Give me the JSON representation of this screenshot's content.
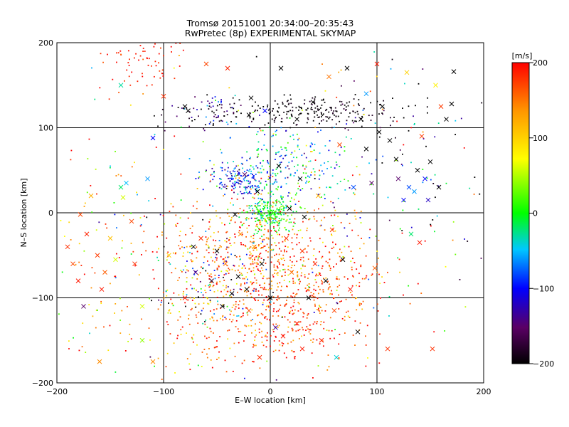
{
  "chart_data": {
    "type": "scatter",
    "title_lines": [
      "Tromsø 20151001 20:34:00–20:35:43",
      "RwPretec (8p) EXPERIMENTAL SKYMAP"
    ],
    "xlabel": "E–W location [km]",
    "ylabel": "N–S location [km]",
    "xlim": [
      -200,
      200
    ],
    "ylim": [
      -200,
      200
    ],
    "xticks": [
      -200,
      -100,
      0,
      100,
      200
    ],
    "yticks": [
      -200,
      -100,
      0,
      100,
      200
    ],
    "x_tick_labels": [
      "−200",
      "−100",
      "0",
      "100",
      "200"
    ],
    "y_tick_labels": [
      "−200",
      "−100",
      "0",
      "100",
      "200"
    ],
    "grid": true,
    "colorbar": {
      "label": "[m/s]",
      "range": [
        -200,
        200
      ],
      "ticks": [
        200,
        100,
        0,
        -100,
        -200
      ],
      "tick_labels": [
        "200",
        "100",
        "0",
        "−100",
        "−200"
      ],
      "colormap": "rainbow",
      "colors": [
        "#000000",
        "#5a0064",
        "#0000ff",
        "#00c8ff",
        "#00ff00",
        "#ffff00",
        "#ff9600",
        "#ff0000"
      ]
    },
    "points": [
      {
        "x": -190,
        "y": -40,
        "v": 180,
        "m": "x"
      },
      {
        "x": -185,
        "y": -60,
        "v": 170,
        "m": "x"
      },
      {
        "x": -180,
        "y": -80,
        "v": 190,
        "m": "x"
      },
      {
        "x": -175,
        "y": -110,
        "v": -150,
        "m": "x"
      },
      {
        "x": -178,
        "y": -2,
        "v": 170,
        "m": "x"
      },
      {
        "x": -172,
        "y": -25,
        "v": 185,
        "m": "x"
      },
      {
        "x": -168,
        "y": 20,
        "v": 120,
        "m": "x"
      },
      {
        "x": -162,
        "y": -50,
        "v": 175,
        "m": "x"
      },
      {
        "x": -158,
        "y": -90,
        "v": 190,
        "m": "x"
      },
      {
        "x": -155,
        "y": -70,
        "v": 160,
        "m": "x"
      },
      {
        "x": -150,
        "y": -30,
        "v": 110,
        "m": "x"
      },
      {
        "x": -145,
        "y": -55,
        "v": 60,
        "m": "x"
      },
      {
        "x": -140,
        "y": 30,
        "v": -20,
        "m": "x"
      },
      {
        "x": -135,
        "y": 35,
        "v": -50,
        "m": "x"
      },
      {
        "x": -130,
        "y": -10,
        "v": 170,
        "m": "x"
      },
      {
        "x": -127,
        "y": -60,
        "v": 180,
        "m": "x"
      },
      {
        "x": -120,
        "y": -110,
        "v": 60,
        "m": "x"
      },
      {
        "x": -115,
        "y": 40,
        "v": -60,
        "m": "x"
      },
      {
        "x": -110,
        "y": -175,
        "v": 140,
        "m": "x"
      },
      {
        "x": -160,
        "y": -175,
        "v": 140,
        "m": "x"
      },
      {
        "x": -100,
        "y": 137,
        "v": 180,
        "m": "x"
      },
      {
        "x": -95,
        "y": -50,
        "v": 100,
        "m": "x"
      },
      {
        "x": -80,
        "y": -100,
        "v": 190,
        "m": "x"
      },
      {
        "x": -80,
        "y": 125,
        "v": -200,
        "m": "x"
      },
      {
        "x": -77,
        "y": 120,
        "v": -200,
        "m": "x"
      },
      {
        "x": -72,
        "y": -40,
        "v": -200,
        "m": "x"
      },
      {
        "x": -70,
        "y": -70,
        "v": -140,
        "m": "x"
      },
      {
        "x": -65,
        "y": -30,
        "v": 180,
        "m": "x"
      },
      {
        "x": -60,
        "y": 175,
        "v": 170,
        "m": "x"
      },
      {
        "x": -55,
        "y": -80,
        "v": -180,
        "m": "x"
      },
      {
        "x": -50,
        "y": -45,
        "v": -200,
        "m": "x"
      },
      {
        "x": -45,
        "y": -110,
        "v": -200,
        "m": "x"
      },
      {
        "x": -42,
        "y": -60,
        "v": 150,
        "m": "x"
      },
      {
        "x": -40,
        "y": 170,
        "v": 185,
        "m": "x"
      },
      {
        "x": -36,
        "y": -95,
        "v": -200,
        "m": "x"
      },
      {
        "x": -33,
        "y": -2,
        "v": -200,
        "m": "x"
      },
      {
        "x": -30,
        "y": -75,
        "v": -200,
        "m": "x"
      },
      {
        "x": -28,
        "y": -25,
        "v": 140,
        "m": "x"
      },
      {
        "x": -24,
        "y": 45,
        "v": -150,
        "m": "x"
      },
      {
        "x": -22,
        "y": -90,
        "v": -200,
        "m": "x"
      },
      {
        "x": -20,
        "y": -115,
        "v": 170,
        "m": "x"
      },
      {
        "x": -18,
        "y": 135,
        "v": -200,
        "m": "x"
      },
      {
        "x": -15,
        "y": -40,
        "v": 130,
        "m": "x"
      },
      {
        "x": -12,
        "y": 25,
        "v": -200,
        "m": "x"
      },
      {
        "x": -8,
        "y": -60,
        "v": -200,
        "m": "x"
      },
      {
        "x": -5,
        "y": 120,
        "v": -100,
        "m": "x"
      },
      {
        "x": 0,
        "y": -100,
        "v": -200,
        "m": "x"
      },
      {
        "x": 3,
        "y": 0,
        "v": 10,
        "m": "x"
      },
      {
        "x": 5,
        "y": -135,
        "v": -130,
        "m": "x"
      },
      {
        "x": 8,
        "y": 55,
        "v": -200,
        "m": "x"
      },
      {
        "x": 12,
        "y": -145,
        "v": 190,
        "m": "x"
      },
      {
        "x": 15,
        "y": -30,
        "v": 180,
        "m": "x"
      },
      {
        "x": 18,
        "y": 5,
        "v": -200,
        "m": "x"
      },
      {
        "x": 20,
        "y": -70,
        "v": 150,
        "m": "x"
      },
      {
        "x": 25,
        "y": -130,
        "v": 190,
        "m": "x"
      },
      {
        "x": 28,
        "y": 40,
        "v": -200,
        "m": "x"
      },
      {
        "x": 30,
        "y": -45,
        "v": 180,
        "m": "x"
      },
      {
        "x": 32,
        "y": -5,
        "v": -200,
        "m": "x"
      },
      {
        "x": 36,
        "y": -100,
        "v": -200,
        "m": "x"
      },
      {
        "x": 40,
        "y": 130,
        "v": -200,
        "m": "x"
      },
      {
        "x": 42,
        "y": -60,
        "v": 190,
        "m": "x"
      },
      {
        "x": 45,
        "y": 20,
        "v": 120,
        "m": "x"
      },
      {
        "x": 48,
        "y": -150,
        "v": 185,
        "m": "x"
      },
      {
        "x": 52,
        "y": -80,
        "v": -200,
        "m": "x"
      },
      {
        "x": 55,
        "y": 160,
        "v": 150,
        "m": "x"
      },
      {
        "x": 58,
        "y": -20,
        "v": 170,
        "m": "x"
      },
      {
        "x": 60,
        "y": -115,
        "v": 170,
        "m": "x"
      },
      {
        "x": 62,
        "y": -170,
        "v": -40,
        "m": "x"
      },
      {
        "x": 65,
        "y": 80,
        "v": 170,
        "m": "x"
      },
      {
        "x": 68,
        "y": -55,
        "v": -200,
        "m": "x"
      },
      {
        "x": 72,
        "y": 170,
        "v": -200,
        "m": "x"
      },
      {
        "x": 75,
        "y": -90,
        "v": 190,
        "m": "x"
      },
      {
        "x": 78,
        "y": 30,
        "v": -80,
        "m": "x"
      },
      {
        "x": 82,
        "y": -140,
        "v": -200,
        "m": "x"
      },
      {
        "x": 85,
        "y": 110,
        "v": -200,
        "m": "x"
      },
      {
        "x": 90,
        "y": 75,
        "v": -200,
        "m": "x"
      },
      {
        "x": 95,
        "y": 35,
        "v": -150,
        "m": "x"
      },
      {
        "x": 98,
        "y": -65,
        "v": 160,
        "m": "x"
      },
      {
        "x": 100,
        "y": 175,
        "v": 190,
        "m": "x"
      },
      {
        "x": 102,
        "y": 95,
        "v": -200,
        "m": "x"
      },
      {
        "x": 110,
        "y": -160,
        "v": 180,
        "m": "x"
      },
      {
        "x": 112,
        "y": 85,
        "v": -200,
        "m": "x"
      },
      {
        "x": 118,
        "y": 63,
        "v": -200,
        "m": "x"
      },
      {
        "x": 120,
        "y": 40,
        "v": -150,
        "m": "x"
      },
      {
        "x": 125,
        "y": 15,
        "v": -100,
        "m": "x"
      },
      {
        "x": 128,
        "y": 165,
        "v": 100,
        "m": "x"
      },
      {
        "x": 130,
        "y": 30,
        "v": -80,
        "m": "x"
      },
      {
        "x": 132,
        "y": -25,
        "v": -20,
        "m": "x"
      },
      {
        "x": 135,
        "y": 25,
        "v": -60,
        "m": "x"
      },
      {
        "x": 138,
        "y": 50,
        "v": -200,
        "m": "x"
      },
      {
        "x": 140,
        "y": -35,
        "v": 190,
        "m": "x"
      },
      {
        "x": 142,
        "y": 90,
        "v": 175,
        "m": "x"
      },
      {
        "x": 145,
        "y": 40,
        "v": -100,
        "m": "x"
      },
      {
        "x": 148,
        "y": 15,
        "v": -120,
        "m": "x"
      },
      {
        "x": 150,
        "y": 60,
        "v": -200,
        "m": "x"
      },
      {
        "x": 152,
        "y": -160,
        "v": 180,
        "m": "x"
      },
      {
        "x": 155,
        "y": 150,
        "v": 80,
        "m": "x"
      },
      {
        "x": 158,
        "y": 30,
        "v": -200,
        "m": "x"
      },
      {
        "x": 160,
        "y": 125,
        "v": 175,
        "m": "x"
      },
      {
        "x": 165,
        "y": 110,
        "v": -200,
        "m": "x"
      },
      {
        "x": 170,
        "y": 128,
        "v": -200,
        "m": "x"
      },
      {
        "x": 172,
        "y": 166,
        "v": -200,
        "m": "x"
      },
      {
        "x": 90,
        "y": 140,
        "v": -60,
        "m": "x"
      },
      {
        "x": 105,
        "y": 125,
        "v": -200,
        "m": "x"
      },
      {
        "x": -20,
        "y": 115,
        "v": -200,
        "m": "x"
      },
      {
        "x": 25,
        "y": 110,
        "v": -200,
        "m": "x"
      },
      {
        "x": 10,
        "y": 170,
        "v": -200,
        "m": "x"
      },
      {
        "x": -138,
        "y": 18,
        "v": 60,
        "m": "x"
      },
      {
        "x": -110,
        "y": 88,
        "v": -100,
        "m": "x"
      },
      {
        "x": -120,
        "y": -150,
        "v": 40,
        "m": "x"
      },
      {
        "x": -140,
        "y": 150,
        "v": -30,
        "m": "x"
      },
      {
        "x": 30,
        "y": -160,
        "v": 190,
        "m": "x"
      },
      {
        "x": -10,
        "y": -170,
        "v": 180,
        "m": "x"
      }
    ],
    "clusters": [
      {
        "cx": 0,
        "cy": 0,
        "sx": 12,
        "sy": 10,
        "n": 230,
        "v": 0,
        "sv": 25
      },
      {
        "cx": -28,
        "cy": 38,
        "sx": 14,
        "sy": 10,
        "n": 140,
        "v": -100,
        "sv": 40
      },
      {
        "cx": 40,
        "cy": 118,
        "sx": 45,
        "sy": 9,
        "n": 230,
        "v": -200,
        "sv": 15
      },
      {
        "cx": -60,
        "cy": 120,
        "sx": 20,
        "sy": 10,
        "n": 70,
        "v": -150,
        "sv": 50
      },
      {
        "cx": 10,
        "cy": 50,
        "sx": 32,
        "sy": 28,
        "n": 260,
        "v": -40,
        "sv": 50
      },
      {
        "cx": -20,
        "cy": -50,
        "sx": 42,
        "sy": 38,
        "n": 460,
        "v": 150,
        "sv": 50
      },
      {
        "cx": 30,
        "cy": -80,
        "sx": 40,
        "sy": 40,
        "n": 360,
        "v": 170,
        "sv": 35
      },
      {
        "cx": -45,
        "cy": -80,
        "sx": 25,
        "sy": 25,
        "n": 110,
        "v": -80,
        "sv": 110
      },
      {
        "cx": 0,
        "cy": -140,
        "sx": 40,
        "sy": 25,
        "n": 170,
        "v": 170,
        "sv": 40
      },
      {
        "cx": -120,
        "cy": 180,
        "sx": 18,
        "sy": 18,
        "n": 70,
        "v": 190,
        "sv": 15
      },
      {
        "cx": -80,
        "cy": -130,
        "sx": 45,
        "sy": 35,
        "n": 90,
        "v": 140,
        "sv": 60
      },
      {
        "cx": 0,
        "cy": 0,
        "sx": 120,
        "sy": 110,
        "n": 220,
        "v": 80,
        "sv": 140
      },
      {
        "cx": 120,
        "cy": 60,
        "sx": 40,
        "sy": 60,
        "n": 80,
        "v": -120,
        "sv": 90
      },
      {
        "cx": -150,
        "cy": -40,
        "sx": 30,
        "sy": 60,
        "n": 70,
        "v": 120,
        "sv": 90
      }
    ]
  }
}
